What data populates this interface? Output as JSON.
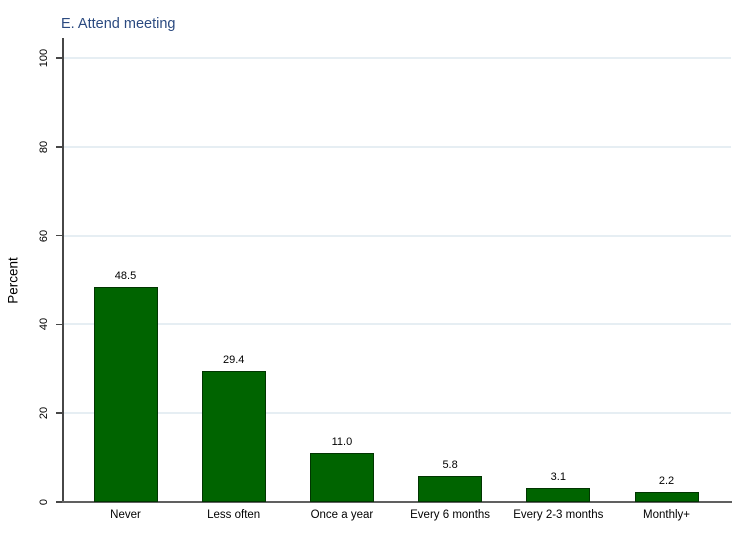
{
  "title": "E. Attend meeting",
  "colors": {
    "background": "#ffffff",
    "bar_fill": "#006400",
    "bar_border": "#013501",
    "title_text": "#2b4a80",
    "gridline": "#e6eef3",
    "axis_line": "#474747",
    "label_text": "#000000"
  },
  "chart_data": {
    "type": "bar",
    "title": "E. Attend meeting",
    "categories": [
      "Never",
      "Less often",
      "Once a year",
      "Every 6 months",
      "Every 2-3 months",
      "Monthly+"
    ],
    "values": [
      48.5,
      29.4,
      11.0,
      5.8,
      3.1,
      2.2
    ],
    "value_labels": [
      "48.5",
      "29.4",
      "11.0",
      "5.8",
      "3.1",
      "2.2"
    ],
    "xlabel": "",
    "ylabel": "Percent",
    "ylim": [
      0,
      100
    ],
    "yticks": [
      0,
      20,
      40,
      60,
      80,
      100
    ],
    "grid": true,
    "grid_axis": "y",
    "legend": "none",
    "bar_orientation": "vertical"
  }
}
